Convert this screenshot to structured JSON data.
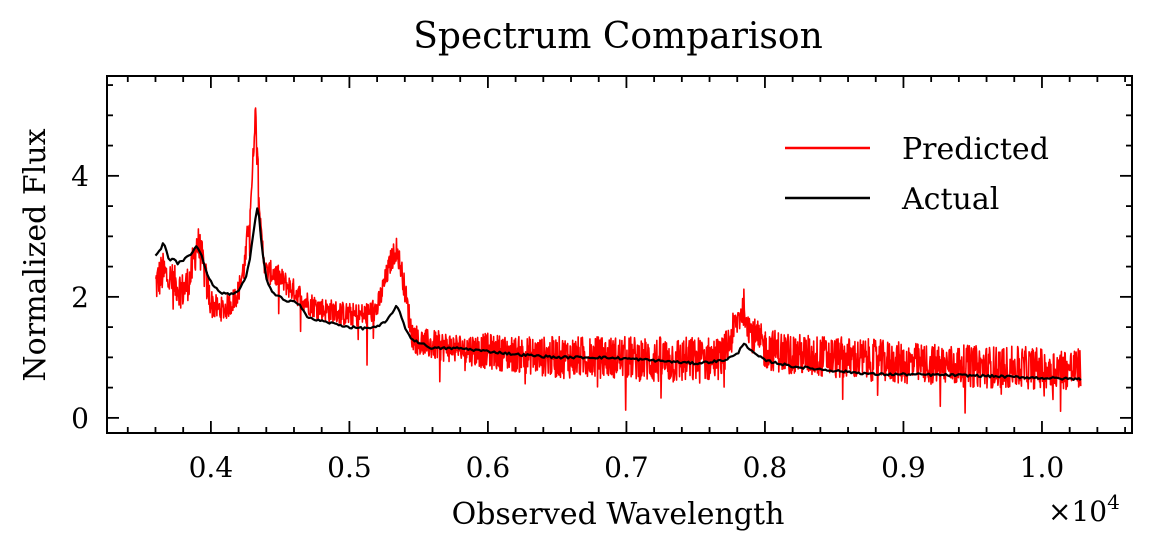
{
  "chart_data": {
    "type": "line",
    "title": "Spectrum Comparison",
    "xlabel": "Observed Wavelength",
    "ylabel": "Normalized Flux",
    "x_multiplier_label": "×10",
    "x_multiplier_exponent": "4",
    "xlim": [
      0.325,
      1.065
    ],
    "ylim": [
      -0.25,
      5.65
    ],
    "x_ticks": [
      0.4,
      0.5,
      0.6,
      0.7,
      0.8,
      0.9,
      1.0
    ],
    "x_tick_labels": [
      "0.4",
      "0.5",
      "0.6",
      "0.7",
      "0.8",
      "0.9",
      "1.0"
    ],
    "y_ticks": [
      0,
      2,
      4
    ],
    "y_tick_labels": [
      "0",
      "2",
      "4"
    ],
    "grid": false,
    "legend_position": "top-right",
    "series": [
      {
        "name": "Predicted",
        "color": "#ff0000",
        "noisy": true,
        "x": [
          0.36,
          0.365,
          0.37,
          0.375,
          0.38,
          0.385,
          0.39,
          0.393,
          0.397,
          0.4,
          0.405,
          0.41,
          0.415,
          0.42,
          0.425,
          0.43,
          0.432,
          0.434,
          0.436,
          0.44,
          0.445,
          0.45,
          0.46,
          0.47,
          0.48,
          0.49,
          0.5,
          0.51,
          0.52,
          0.53,
          0.534,
          0.538,
          0.545,
          0.55,
          0.56,
          0.58,
          0.6,
          0.62,
          0.65,
          0.68,
          0.7,
          0.72,
          0.75,
          0.77,
          0.78,
          0.785,
          0.79,
          0.8,
          0.82,
          0.85,
          0.88,
          0.9,
          0.95,
          1.0,
          1.028
        ],
        "y": [
          2.2,
          2.4,
          2.3,
          2.2,
          2.1,
          2.3,
          2.9,
          2.7,
          2.2,
          1.9,
          1.8,
          1.8,
          1.9,
          2.1,
          2.6,
          4.0,
          5.1,
          4.3,
          3.0,
          2.4,
          2.4,
          2.3,
          2.1,
          1.9,
          1.8,
          1.75,
          1.7,
          1.7,
          1.8,
          2.6,
          2.8,
          2.4,
          1.4,
          1.25,
          1.2,
          1.15,
          1.1,
          1.05,
          1.0,
          1.0,
          1.0,
          0.95,
          0.95,
          1.0,
          1.6,
          1.85,
          1.4,
          1.15,
          1.05,
          1.0,
          0.95,
          0.9,
          0.85,
          0.82,
          0.8
        ],
        "noise_amplitude": [
          0.7,
          0.7,
          0.6,
          0.6,
          0.6,
          0.6,
          0.7,
          0.6,
          0.6,
          0.5,
          0.4,
          0.4,
          0.4,
          0.4,
          0.5,
          0.5,
          0.4,
          0.4,
          0.5,
          0.4,
          0.4,
          0.4,
          0.4,
          0.4,
          0.4,
          0.4,
          0.4,
          0.4,
          0.4,
          0.4,
          0.4,
          0.4,
          0.5,
          0.5,
          0.5,
          0.5,
          0.6,
          0.6,
          0.7,
          0.7,
          0.7,
          0.8,
          0.8,
          0.7,
          0.6,
          0.6,
          0.6,
          0.7,
          0.7,
          0.7,
          0.7,
          0.7,
          0.7,
          0.7,
          0.7
        ]
      },
      {
        "name": "Actual",
        "color": "#000000",
        "noisy": false,
        "x": [
          0.36,
          0.363,
          0.366,
          0.37,
          0.373,
          0.376,
          0.38,
          0.385,
          0.39,
          0.393,
          0.397,
          0.4,
          0.405,
          0.41,
          0.415,
          0.42,
          0.425,
          0.428,
          0.431,
          0.434,
          0.436,
          0.438,
          0.44,
          0.445,
          0.45,
          0.455,
          0.46,
          0.465,
          0.47,
          0.48,
          0.49,
          0.5,
          0.51,
          0.52,
          0.527,
          0.531,
          0.534,
          0.537,
          0.541,
          0.545,
          0.55,
          0.56,
          0.58,
          0.6,
          0.62,
          0.65,
          0.68,
          0.7,
          0.72,
          0.75,
          0.77,
          0.78,
          0.785,
          0.79,
          0.8,
          0.82,
          0.85,
          0.88,
          0.9,
          0.95,
          1.0,
          1.028
        ],
        "y": [
          2.7,
          2.75,
          2.9,
          2.6,
          2.65,
          2.55,
          2.6,
          2.7,
          2.85,
          2.7,
          2.4,
          2.25,
          2.1,
          2.05,
          2.05,
          2.1,
          2.3,
          2.6,
          3.1,
          3.55,
          3.0,
          2.6,
          2.3,
          2.05,
          2.0,
          1.9,
          1.95,
          1.85,
          1.65,
          1.6,
          1.55,
          1.5,
          1.48,
          1.5,
          1.6,
          1.75,
          1.85,
          1.7,
          1.45,
          1.3,
          1.25,
          1.15,
          1.15,
          1.1,
          1.05,
          1.0,
          1.0,
          0.98,
          0.95,
          0.9,
          0.95,
          1.05,
          1.25,
          1.1,
          0.95,
          0.85,
          0.78,
          0.72,
          0.72,
          0.7,
          0.66,
          0.64
        ]
      }
    ]
  }
}
